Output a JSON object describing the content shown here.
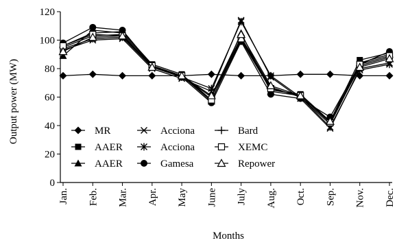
{
  "chart_data": {
    "type": "line",
    "title": "",
    "xlabel": "Months",
    "ylabel": "Output power (MW)",
    "ylim": [
      0,
      120
    ],
    "yticks": [
      0,
      20,
      40,
      60,
      80,
      100,
      120
    ],
    "x": [
      "Jan.",
      "Feb.",
      "Mar.",
      "Apr.",
      "May",
      "June",
      "July",
      "Aug.",
      "Oct.",
      "Sep.",
      "Nov.",
      "Dec."
    ],
    "grid": false,
    "legend_position": "bottom-left",
    "series": [
      {
        "name": "MR",
        "marker": "diamond",
        "values": [
          75,
          76,
          75,
          75,
          75,
          76,
          75,
          75,
          76,
          76,
          75,
          75
        ]
      },
      {
        "name": "AAER",
        "marker": "square",
        "values": [
          96,
          105,
          106,
          83,
          76,
          58,
          100,
          65,
          62,
          43,
          86,
          91
        ]
      },
      {
        "name": "AAER",
        "marker": "triangle",
        "values": [
          89,
          107,
          105,
          82,
          75,
          57,
          105,
          64,
          61,
          42,
          84,
          90
        ]
      },
      {
        "name": "Acciona",
        "marker": "x",
        "values": [
          93,
          100,
          101,
          80,
          73,
          64,
          114,
          74,
          59,
          38,
          80,
          84
        ]
      },
      {
        "name": "Acciona",
        "marker": "asterisk",
        "values": [
          94,
          101,
          102,
          81,
          74,
          66,
          113,
          75,
          60,
          39,
          79,
          83
        ]
      },
      {
        "name": "Gamesa",
        "marker": "circle",
        "values": [
          98,
          109,
          107,
          82,
          74,
          56,
          99,
          62,
          59,
          46,
          83,
          92
        ]
      },
      {
        "name": "Bard",
        "marker": "plus",
        "values": [
          95,
          103,
          104,
          81,
          75,
          60,
          102,
          67,
          60,
          41,
          82,
          88
        ]
      },
      {
        "name": "XEMC",
        "marker": "square-open",
        "values": [
          96,
          104,
          103,
          82,
          75,
          58,
          101,
          66,
          61,
          42,
          83,
          89
        ]
      },
      {
        "name": "Repower",
        "marker": "triangle-open",
        "values": [
          92,
          102,
          103,
          81,
          75,
          61,
          104,
          68,
          61,
          43,
          81,
          87
        ]
      }
    ],
    "legend": [
      {
        "label": "MR",
        "marker": "diamond"
      },
      {
        "label": "AAER",
        "marker": "square"
      },
      {
        "label": "AAER",
        "marker": "triangle"
      },
      {
        "label": "Acciona",
        "marker": "x"
      },
      {
        "label": "Acciona",
        "marker": "asterisk"
      },
      {
        "label": "Gamesa",
        "marker": "circle"
      },
      {
        "label": "Bard",
        "marker": "plus"
      },
      {
        "label": "XEMC",
        "marker": "square-open"
      },
      {
        "label": "Repower",
        "marker": "triangle-open"
      }
    ],
    "colors": {
      "line": "#000000",
      "background": "#ffffff"
    }
  }
}
